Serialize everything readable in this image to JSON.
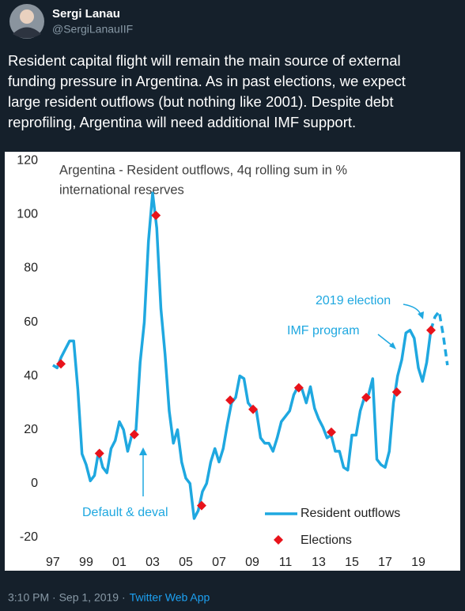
{
  "tweet": {
    "name": "Sergi Lanau",
    "handle": "@SergiLanauIIF",
    "text_lines": [
      "Resident capital flight will remain the main source of external",
      "funding pressure in Argentina. As in past elections, we expect",
      "large resident outflows (but nothing like 2001). Despite debt",
      "reprofiling, Argentina will need additional IMF support."
    ],
    "timestamp": "3:10 PM · Sep 1, 2019 ·",
    "source": "Twitter Web App"
  },
  "chart_data": {
    "type": "line",
    "title": [
      "Argentina - Resident outflows, 4q rolling sum in %",
      "international reserves"
    ],
    "x": [
      1997,
      1997.25,
      1997.5,
      1997.75,
      1998,
      1998.25,
      1998.5,
      1998.75,
      1999,
      1999.25,
      1999.5,
      1999.75,
      2000,
      2000.25,
      2000.5,
      2000.75,
      2001,
      2001.25,
      2001.5,
      2001.75,
      2002,
      2002.25,
      2002.5,
      2002.75,
      2003,
      2003.25,
      2003.5,
      2003.75,
      2004,
      2004.25,
      2004.5,
      2004.75,
      2005,
      2005.25,
      2005.5,
      2005.75,
      2006,
      2006.25,
      2006.5,
      2006.75,
      2007,
      2007.25,
      2007.5,
      2007.75,
      2008,
      2008.25,
      2008.5,
      2008.75,
      2009,
      2009.25,
      2009.5,
      2009.75,
      2010,
      2010.25,
      2010.5,
      2010.75,
      2011,
      2011.25,
      2011.5,
      2011.75,
      2012,
      2012.25,
      2012.5,
      2012.75,
      2013,
      2013.25,
      2013.5,
      2013.75,
      2014,
      2014.25,
      2014.5,
      2014.75,
      2015,
      2015.25,
      2015.5,
      2015.75,
      2016,
      2016.25,
      2016.5,
      2016.75,
      2017,
      2017.25,
      2017.5,
      2017.75,
      2018,
      2018.25,
      2018.5,
      2018.75,
      2019,
      2019.25,
      2019.5,
      2019.75
    ],
    "series": [
      {
        "name": "Resident outflows",
        "color": "#1fa8e0",
        "values": [
          44,
          43,
          47,
          50,
          53,
          53,
          35,
          11,
          7,
          1,
          3,
          12,
          6,
          4,
          13,
          16,
          23,
          20,
          12,
          18,
          20,
          45,
          60,
          90,
          108,
          95,
          65,
          48,
          27,
          15,
          20,
          8,
          2,
          0,
          -13,
          -10,
          -3,
          0,
          8,
          13,
          8,
          13,
          22,
          30,
          32,
          40,
          39,
          30,
          28,
          27,
          17,
          15,
          15,
          12,
          17,
          23,
          25,
          27,
          33,
          36,
          35,
          30,
          36,
          28,
          24,
          21,
          17,
          18,
          12,
          12,
          6,
          5,
          18,
          18,
          27,
          32,
          33,
          39,
          9,
          7,
          6,
          12,
          30,
          40,
          46,
          56,
          57,
          54,
          43,
          38,
          45,
          57
        ]
      }
    ],
    "projection": {
      "color": "#1fa8e0",
      "dashed": true,
      "x": [
        2019.75,
        2020,
        2020.25,
        2020.5,
        2020.75
      ],
      "values": [
        57,
        62,
        64,
        55,
        44
      ]
    },
    "markers": {
      "name": "Elections",
      "color": "#e8131b",
      "x": [
        1997.48,
        1999.8,
        2001.9,
        2003.2,
        2005.95,
        2007.67,
        2009.05,
        2011.8,
        2013.76,
        2015.86,
        2017.7,
        2019.76
      ],
      "values": [
        44.5,
        11.2,
        18.2,
        99.7,
        -8.2,
        31,
        27.6,
        35.6,
        19.1,
        32,
        34,
        57
      ]
    },
    "annotations": [
      "Default & deval",
      "2019 election",
      "IMF program"
    ],
    "xlim": [
      1996.86,
      2020.95
    ],
    "ylim": [
      -23,
      121
    ],
    "xticks": [
      {
        "value": 1997,
        "label": "97"
      },
      {
        "value": 1999,
        "label": "99"
      },
      {
        "value": 2001,
        "label": "01"
      },
      {
        "value": 2003,
        "label": "03"
      },
      {
        "value": 2005,
        "label": "05"
      },
      {
        "value": 2007,
        "label": "07"
      },
      {
        "value": 2009,
        "label": "09"
      },
      {
        "value": 2011,
        "label": "11"
      },
      {
        "value": 2013,
        "label": "13"
      },
      {
        "value": 2015,
        "label": "15"
      },
      {
        "value": 2017,
        "label": "17"
      },
      {
        "value": 2019,
        "label": "19"
      }
    ],
    "yticks": [
      -20,
      0,
      20,
      40,
      60,
      80,
      100,
      120
    ],
    "grid": false
  }
}
